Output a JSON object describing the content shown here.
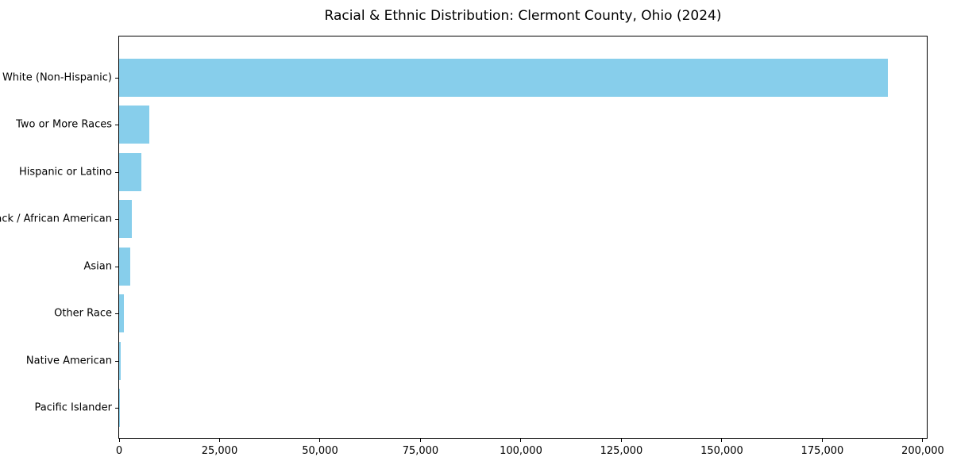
{
  "chart_data": {
    "type": "bar",
    "orientation": "horizontal",
    "title": "Racial & Ethnic Distribution: Clermont County, Ohio (2024)",
    "categories": [
      "White (Non-Hispanic)",
      "Two or More Races",
      "Hispanic or Latino",
      "Black / African American",
      "Asian",
      "Other Race",
      "Native American",
      "Pacific Islander"
    ],
    "values": [
      191300,
      7500,
      5500,
      3200,
      2700,
      1100,
      300,
      70
    ],
    "bar_color": "#87CEEB",
    "xlabel": "",
    "ylabel": "",
    "xlim": [
      0,
      201000
    ],
    "x_ticks": [
      0,
      25000,
      50000,
      75000,
      100000,
      125000,
      150000,
      175000,
      200000
    ],
    "x_tick_labels": [
      "0",
      "25,000",
      "50,000",
      "75,000",
      "100,000",
      "125,000",
      "150,000",
      "175,000",
      "200,000"
    ],
    "grid": false,
    "legend_position": "none",
    "frame": "full-box"
  }
}
